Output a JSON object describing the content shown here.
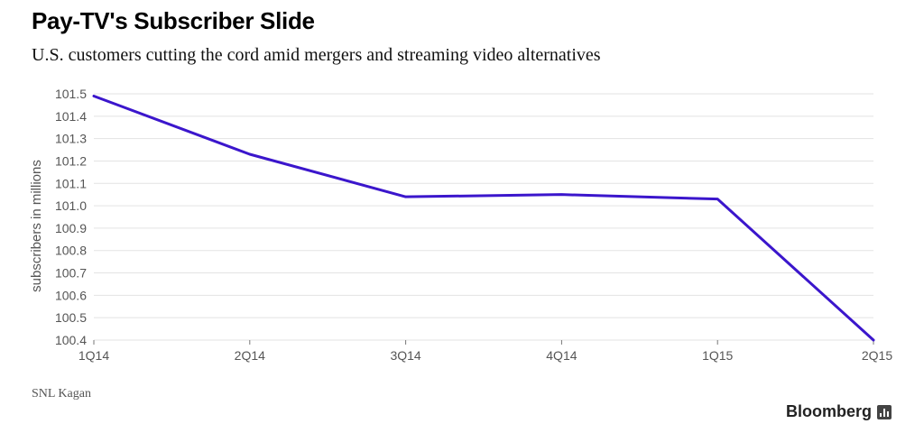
{
  "header": {
    "title": "Pay-TV's Subscriber Slide",
    "subtitle": "U.S. customers cutting the cord amid mergers and streaming video alternatives"
  },
  "footer": {
    "source": "SNL Kagan",
    "brand": "Bloomberg",
    "brand_icon": "bar-chart-icon"
  },
  "colors": {
    "line": "#3b16cc",
    "grid": "#e3e3e3",
    "text": "#555555"
  },
  "chart_data": {
    "type": "line",
    "title": "Pay-TV's Subscriber Slide",
    "subtitle": "U.S. customers cutting the cord amid mergers and streaming video alternatives",
    "xlabel": "",
    "ylabel": "subscribers in millions",
    "categories": [
      "1Q14",
      "2Q14",
      "3Q14",
      "4Q14",
      "1Q15",
      "2Q15"
    ],
    "series": [
      {
        "values": [
          101.49,
          101.23,
          101.04,
          101.05,
          101.03,
          100.4
        ]
      }
    ],
    "yticks": [
      "101.5",
      "101.4",
      "101.3",
      "101.2",
      "101.1",
      "101.0",
      "100.9",
      "100.8",
      "100.7",
      "100.6",
      "100.5",
      "100.4"
    ],
    "ylim": [
      100.4,
      101.5
    ],
    "grid": true,
    "legend": "none"
  }
}
